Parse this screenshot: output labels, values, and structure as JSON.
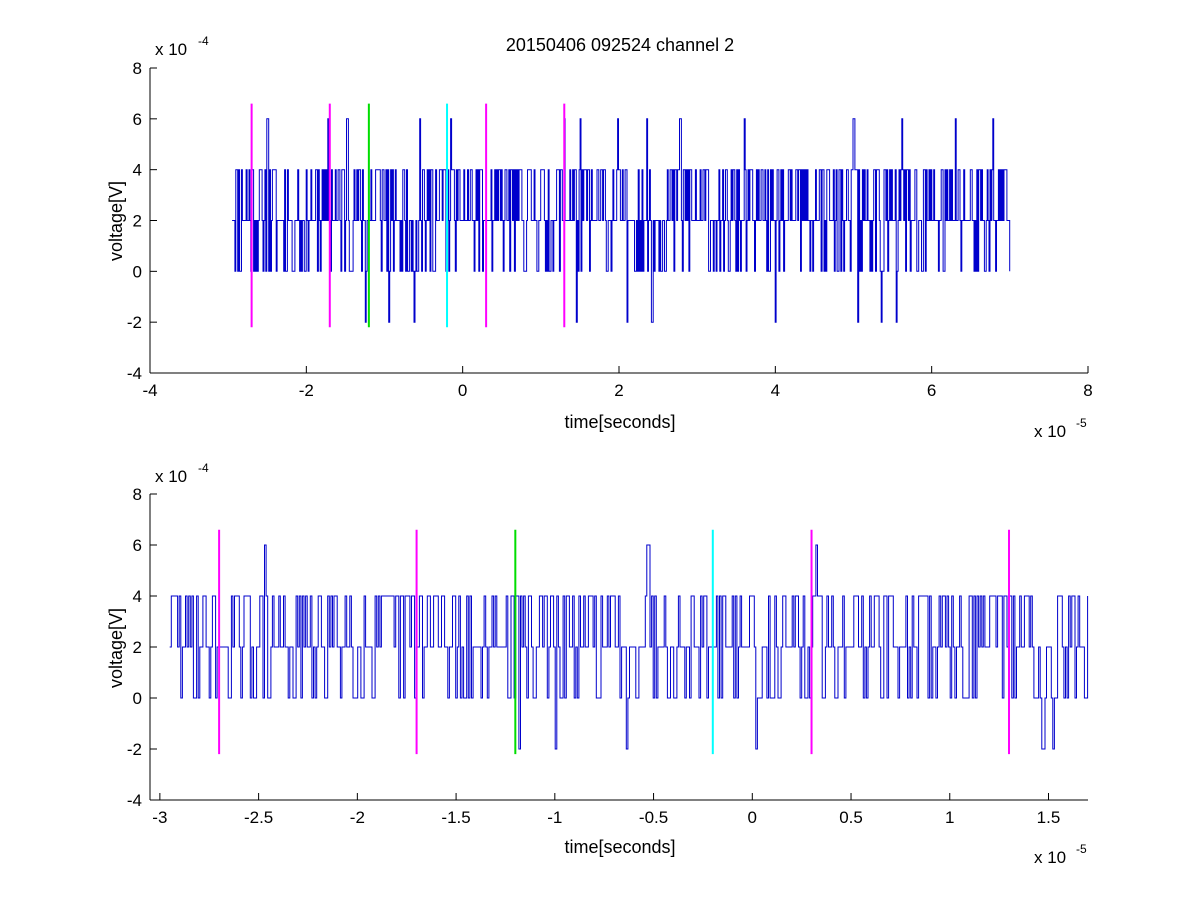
{
  "figure": {
    "title": "20150406 092524 channel 2"
  },
  "colors": {
    "trace": "#0000cc",
    "magenta": "#ff00ff",
    "green": "#00dd00",
    "cyan": "#00ffff",
    "axis": "#000000"
  },
  "chart_data": [
    {
      "type": "line",
      "title": "20150406 092524 channel 2",
      "xlabel": "time[seconds]",
      "ylabel": "voltage[V]",
      "x_exponent_label": {
        "base": "x 10",
        "exp": "-5"
      },
      "y_exponent_label": {
        "base": "x 10",
        "exp": "-4"
      },
      "xlim": [
        -4e-05,
        8e-05
      ],
      "ylim": [
        -0.0004,
        0.0008
      ],
      "xticks": [
        -4e-05,
        -2e-05,
        0,
        2e-05,
        4e-05,
        6e-05,
        8e-05
      ],
      "xtick_labels": [
        "-4",
        "-2",
        "0",
        "2",
        "4",
        "6",
        "8"
      ],
      "yticks": [
        -0.0004,
        -0.0002,
        0,
        0.0002,
        0.0004,
        0.0006,
        0.0008
      ],
      "ytick_labels": [
        "-4",
        "-2",
        "0",
        "2",
        "4",
        "6",
        "8"
      ],
      "grid": false,
      "series": [
        {
          "kind": "step-trace",
          "x_start": -2.95e-05,
          "x_end": 7e-05,
          "levels_volts": [
            -0.0002,
            0,
            0.0002,
            0.0004,
            0.0006
          ],
          "spike_times_6e-4": [
            -2.5e-05,
            -1.73e-05,
            -1.48e-05,
            -5.5e-06,
            -1.5e-06,
            1.3e-05,
            1.5e-05,
            1.98e-05,
            2.35e-05,
            2.78e-05,
            3.6e-05,
            5e-05,
            5.62e-05,
            6.3e-05,
            6.78e-05
          ],
          "spike_times_-2e-4": [
            -1.25e-05,
            -9.5e-06,
            -6.2e-06,
            1.45e-05,
            2.1e-05,
            2.42e-05,
            4e-05,
            5.05e-05,
            5.35e-05,
            5.55e-05
          ]
        }
      ],
      "markers": [
        {
          "x": -2.7e-05,
          "color": "magenta",
          "y_from": -0.00022,
          "y_to": 0.00066
        },
        {
          "x": -1.7e-05,
          "color": "magenta",
          "y_from": -0.00022,
          "y_to": 0.00066
        },
        {
          "x": -1.2e-05,
          "color": "green",
          "y_from": -0.00022,
          "y_to": 0.00066
        },
        {
          "x": -2e-06,
          "color": "cyan",
          "y_from": -0.00022,
          "y_to": 0.00066
        },
        {
          "x": 3e-06,
          "color": "magenta",
          "y_from": -0.00022,
          "y_to": 0.00066
        },
        {
          "x": 1.3e-05,
          "color": "magenta",
          "y_from": -0.00022,
          "y_to": 0.00066
        }
      ],
      "seed": 11,
      "trace_step": 1.2e-07
    },
    {
      "type": "line",
      "title": "",
      "xlabel": "time[seconds]",
      "ylabel": "voltage[V]",
      "x_exponent_label": {
        "base": "x 10",
        "exp": "-5"
      },
      "y_exponent_label": {
        "base": "x 10",
        "exp": "-4"
      },
      "xlim": [
        -3.05e-05,
        1.7e-05
      ],
      "ylim": [
        -0.0004,
        0.0008
      ],
      "xticks": [
        -3e-05,
        -2.5e-05,
        -2e-05,
        -1.5e-05,
        -1e-05,
        -5e-06,
        0,
        5e-06,
        1e-05,
        1.5e-05
      ],
      "xtick_labels": [
        "-3",
        "-2.5",
        "-2",
        "-1.5",
        "-1",
        "-0.5",
        "0",
        "0.5",
        "1",
        "1.5"
      ],
      "yticks": [
        -0.0004,
        -0.0002,
        0,
        0.0002,
        0.0004,
        0.0006,
        0.0008
      ],
      "ytick_labels": [
        "-4",
        "-2",
        "0",
        "2",
        "4",
        "6",
        "8"
      ],
      "grid": false,
      "series": [
        {
          "kind": "step-trace",
          "x_start": -2.95e-05,
          "x_end": 1.7e-05,
          "levels_volts": [
            -0.0002,
            0,
            0.0002,
            0.0004,
            0.0006
          ],
          "spike_times_6e-4": [
            -2.47e-05,
            -5.3e-06,
            3.2e-06
          ],
          "spike_times_-2e-4": [
            -1.18e-05,
            -1e-05,
            -6.4e-06,
            2e-07,
            1.47e-05,
            1.52e-05
          ]
        }
      ],
      "markers": [
        {
          "x": -2.7e-05,
          "color": "magenta",
          "y_from": -0.00022,
          "y_to": 0.00066
        },
        {
          "x": -1.7e-05,
          "color": "magenta",
          "y_from": -0.00022,
          "y_to": 0.00066
        },
        {
          "x": -1.2e-05,
          "color": "green",
          "y_from": -0.00022,
          "y_to": 0.00066
        },
        {
          "x": -2e-06,
          "color": "cyan",
          "y_from": -0.00022,
          "y_to": 0.00066
        },
        {
          "x": 3e-06,
          "color": "magenta",
          "y_from": -0.00022,
          "y_to": 0.00066
        },
        {
          "x": 1.3e-05,
          "color": "magenta",
          "y_from": -0.00022,
          "y_to": 0.00066
        }
      ],
      "seed": 29,
      "trace_step": 8e-08
    }
  ]
}
